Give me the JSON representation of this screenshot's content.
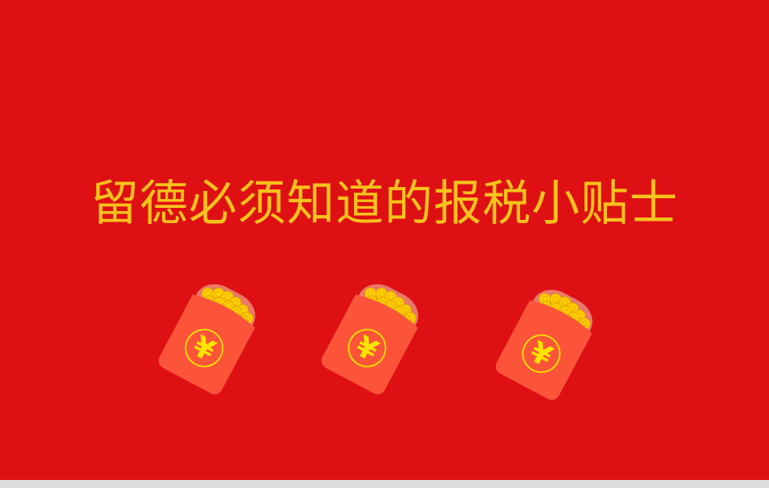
{
  "slide": {
    "title": "留德必须知道的报税小贴士"
  },
  "envelopes": [
    {
      "icon": "red-envelope-icon",
      "symbol": "¥",
      "rotation_deg": 28
    },
    {
      "icon": "red-envelope-icon",
      "symbol": "¥",
      "rotation_deg": 28
    },
    {
      "icon": "red-envelope-icon",
      "symbol": "¥",
      "rotation_deg": 28
    }
  ],
  "colors": {
    "background": "#df1014",
    "title": "#f6c21c",
    "envelope_body": "#fb5438",
    "envelope_shadow": "#e9786a",
    "coin": "#fdd000",
    "coin_stroke": "#e8a800",
    "medallion": "#fde400"
  }
}
